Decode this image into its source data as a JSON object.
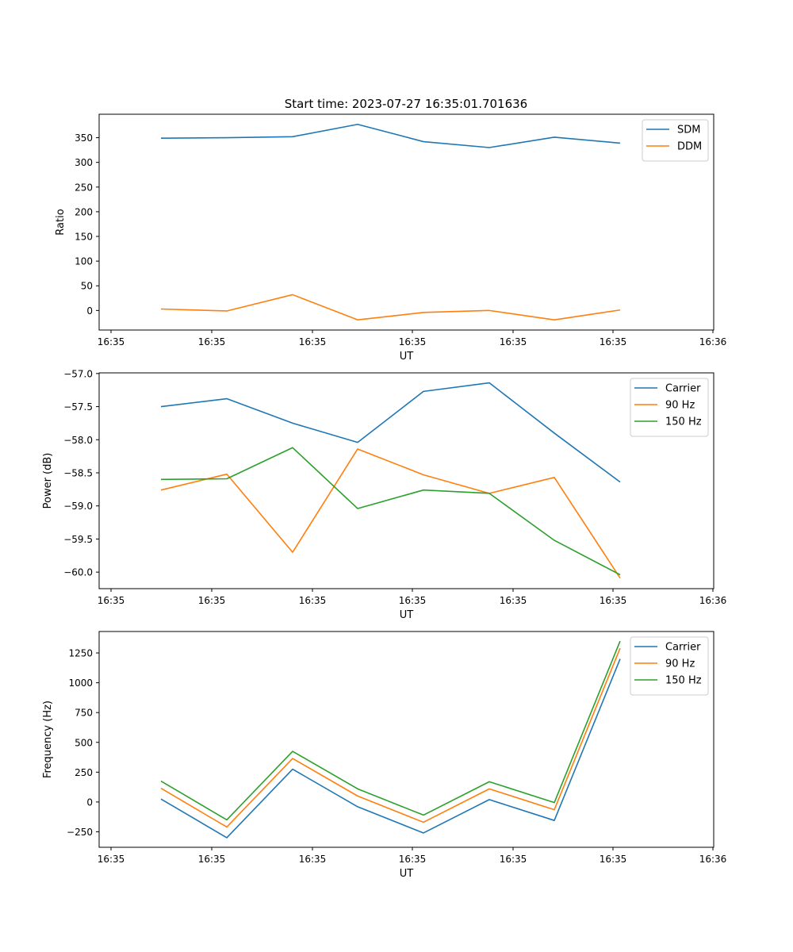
{
  "title": "Start time: 2023-07-27 16:35:01.701636",
  "chart_data": [
    {
      "type": "line",
      "xlabel": "UT",
      "ylabel": "Ratio",
      "x_tick_labels": [
        "16:35",
        "16:35",
        "16:35",
        "16:35",
        "16:35",
        "16:35",
        "16:35",
        "16:36"
      ],
      "y_ticks": [
        0,
        50,
        100,
        150,
        200,
        250,
        300,
        350
      ],
      "y_tick_labels": [
        "0",
        "50",
        "100",
        "150",
        "200",
        "250",
        "300",
        "350"
      ],
      "ylim": [
        -39.6,
        397.5
      ],
      "legend": "top-right",
      "series": [
        {
          "name": "SDM",
          "color": "#1f77b4",
          "values": [
            349,
            350,
            352,
            377,
            342,
            330,
            351,
            339
          ]
        },
        {
          "name": "DDM",
          "color": "#ff7f0e",
          "values": [
            3,
            -1,
            32,
            -19,
            -4,
            0,
            -19,
            1
          ]
        }
      ]
    },
    {
      "type": "line",
      "xlabel": "UT",
      "ylabel": "Power (dB)",
      "x_tick_labels": [
        "16:35",
        "16:35",
        "16:35",
        "16:35",
        "16:35",
        "16:35",
        "16:35",
        "16:36"
      ],
      "y_ticks": [
        -60.0,
        -59.5,
        -59.0,
        -58.5,
        -58.0,
        -57.5,
        -57.0
      ],
      "y_tick_labels": [
        "−60.0",
        "−59.5",
        "−59.0",
        "−58.5",
        "−58.0",
        "−57.5",
        "−57.0"
      ],
      "ylim": [
        -60.25,
        -56.99
      ],
      "legend": "top-right",
      "series": [
        {
          "name": "Carrier",
          "color": "#1f77b4",
          "values": [
            -57.5,
            -57.38,
            -57.75,
            -58.04,
            -57.27,
            -57.14,
            -57.9,
            -58.64
          ]
        },
        {
          "name": "90 Hz",
          "color": "#ff7f0e",
          "values": [
            -58.76,
            -58.52,
            -59.7,
            -58.14,
            -58.53,
            -58.81,
            -58.57,
            -60.09
          ]
        },
        {
          "name": "150 Hz",
          "color": "#2ca02c",
          "values": [
            -58.6,
            -58.59,
            -58.12,
            -59.04,
            -58.76,
            -58.81,
            -59.52,
            -60.04
          ]
        }
      ]
    },
    {
      "type": "line",
      "xlabel": "UT",
      "ylabel": "Frequency (Hz)",
      "x_tick_labels": [
        "16:35",
        "16:35",
        "16:35",
        "16:35",
        "16:35",
        "16:35",
        "16:35",
        "16:36"
      ],
      "y_ticks": [
        -250,
        0,
        250,
        500,
        750,
        1000,
        1250
      ],
      "y_tick_labels": [
        "−250",
        "0",
        "250",
        "500",
        "750",
        "1000",
        "1250"
      ],
      "ylim": [
        -380,
        1430
      ],
      "legend": "top-right",
      "series": [
        {
          "name": "Carrier",
          "color": "#1f77b4",
          "values": [
            25,
            -300,
            275,
            -40,
            -260,
            20,
            -155,
            1200
          ]
        },
        {
          "name": "90 Hz",
          "color": "#ff7f0e",
          "values": [
            115,
            -210,
            365,
            50,
            -170,
            110,
            -65,
            1290
          ]
        },
        {
          "name": "150 Hz",
          "color": "#2ca02c",
          "values": [
            175,
            -150,
            425,
            110,
            -110,
            170,
            -5,
            1350
          ]
        }
      ]
    }
  ]
}
